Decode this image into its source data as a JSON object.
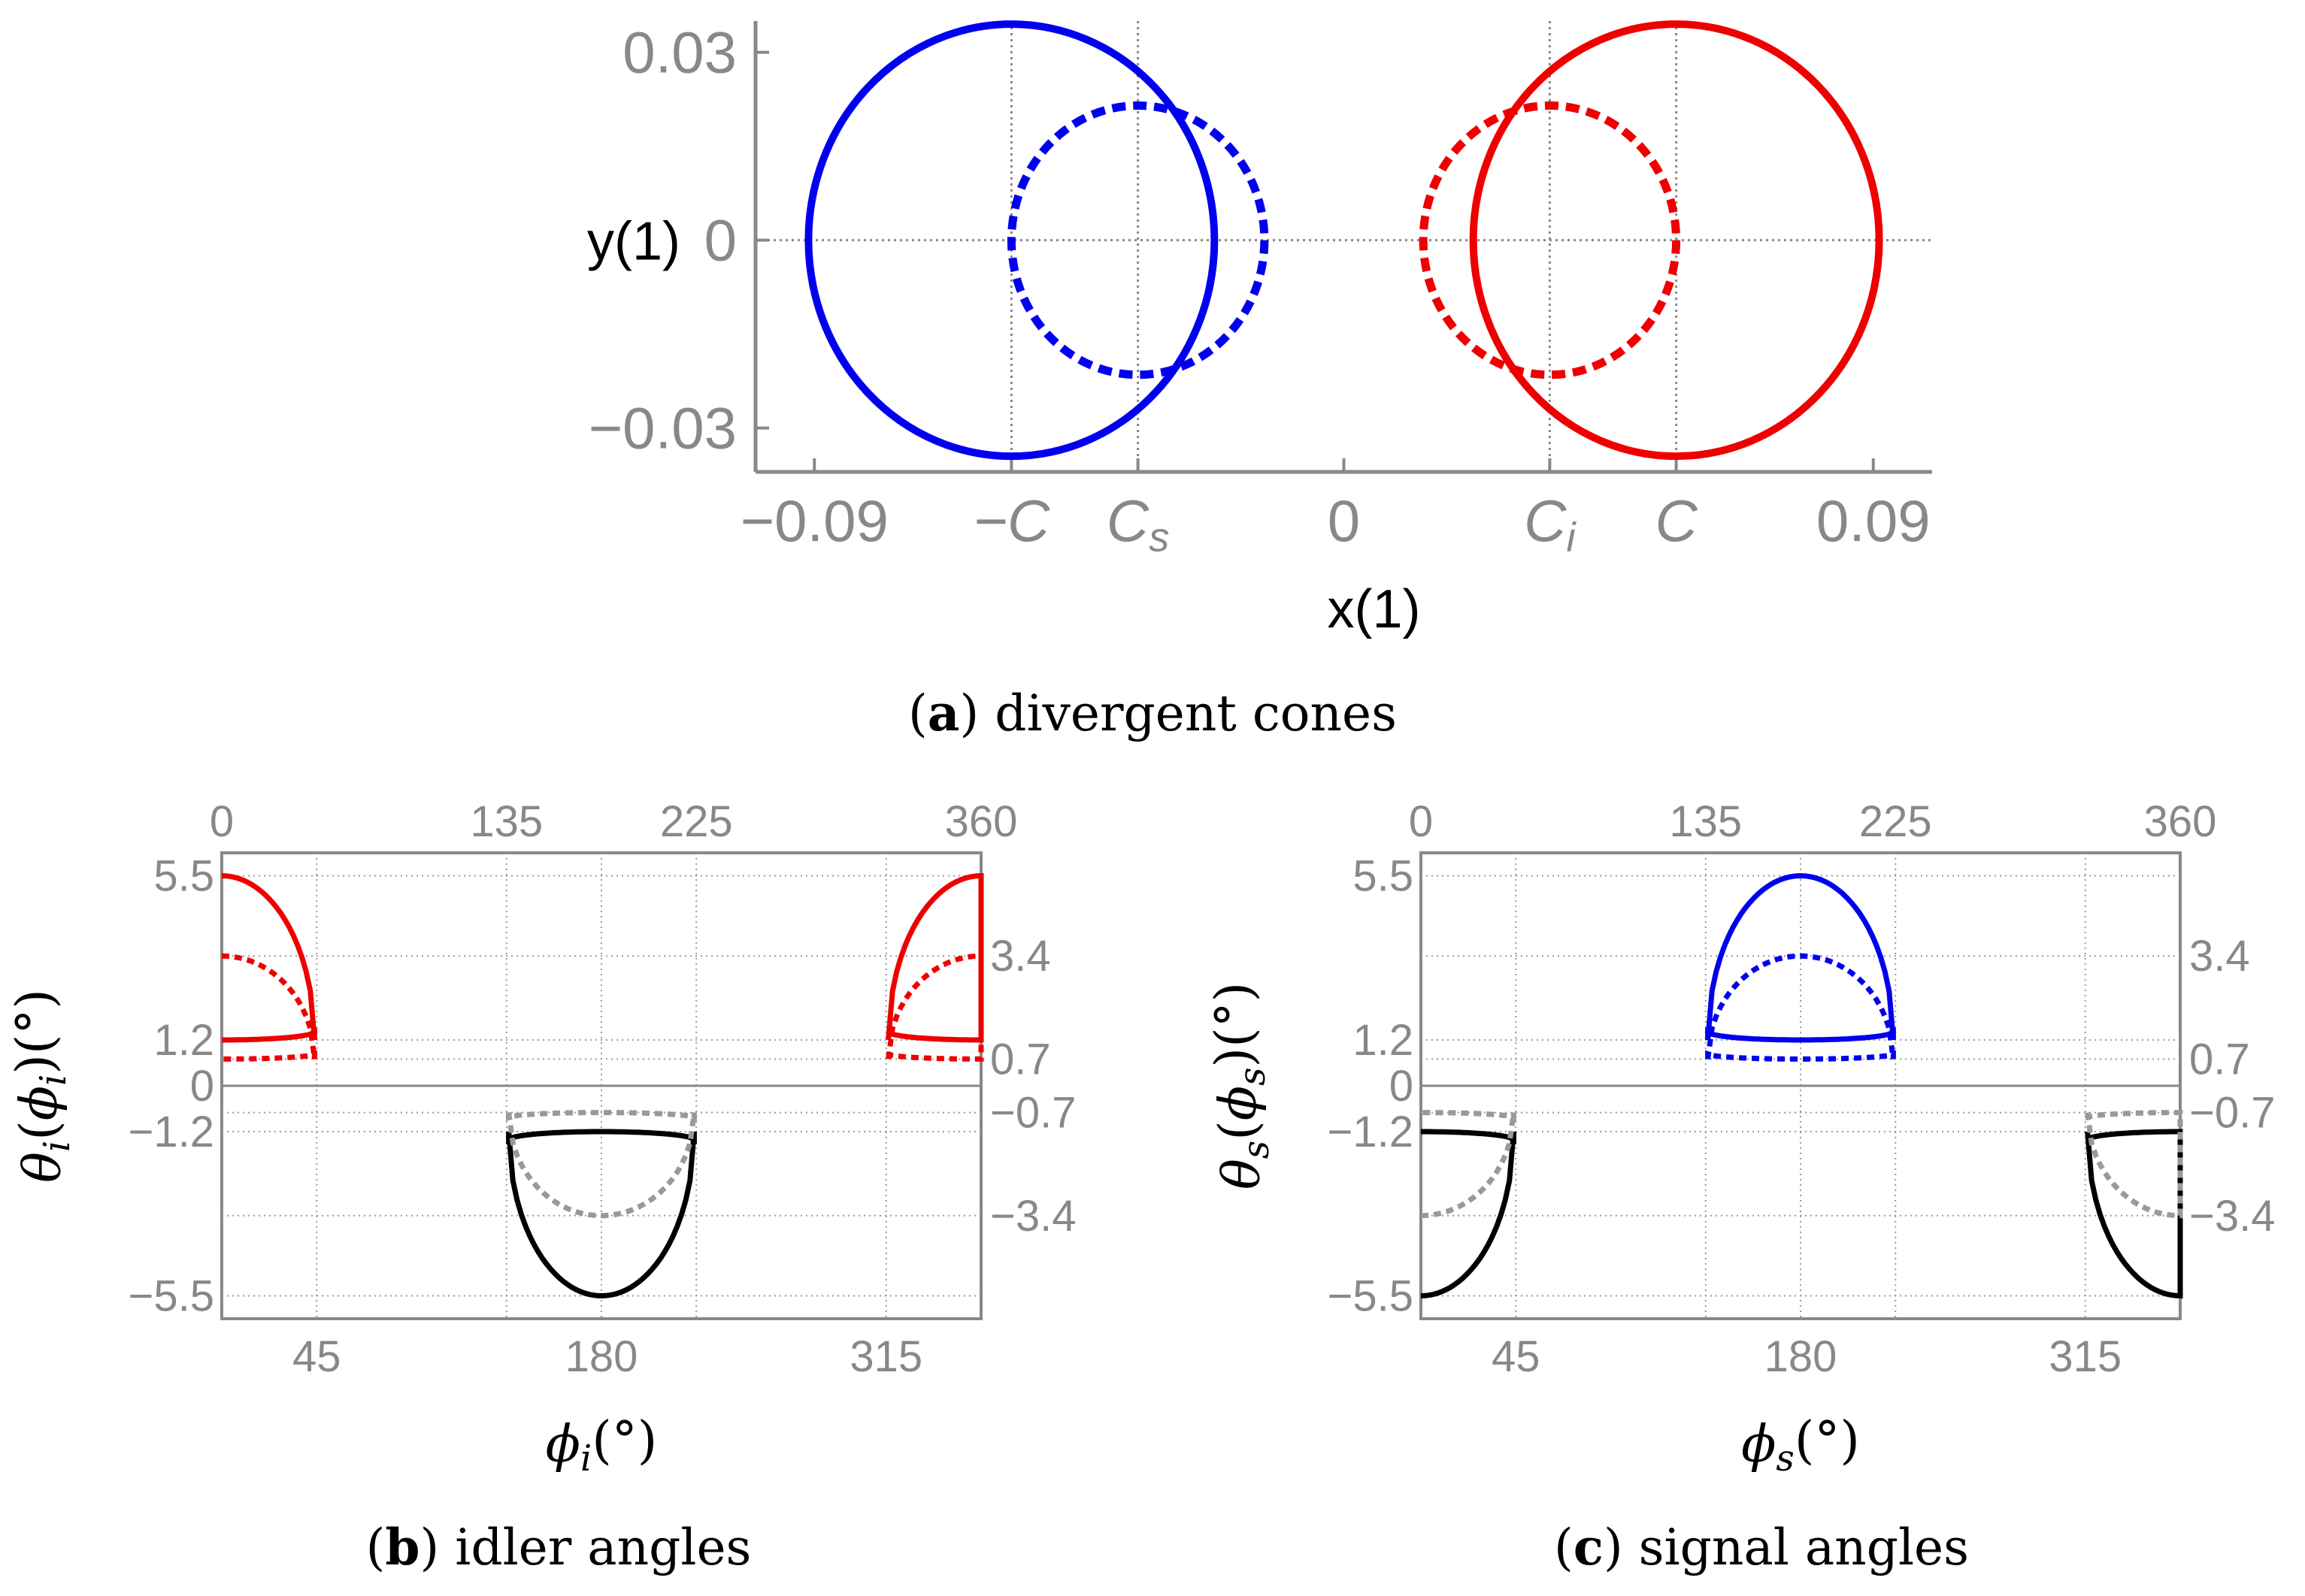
{
  "chart_data": [
    {
      "id": "a",
      "type": "line",
      "caption_letter": "a",
      "caption_text": "divergent cones",
      "xlabel": "x(1)",
      "ylabel": "y(1)",
      "xlim": [
        -0.1,
        0.1
      ],
      "ylim": [
        -0.037,
        0.035
      ],
      "C": 0.0565,
      "Cs": -0.035,
      "Ci": 0.035,
      "x_ticks": [
        {
          "value": -0.09,
          "label": "−0.09"
        },
        {
          "value": -0.0565,
          "label": "−C"
        },
        {
          "value": -0.035,
          "label": "C",
          "sub": "s"
        },
        {
          "value": 0,
          "label": "0"
        },
        {
          "value": 0.035,
          "label": "C",
          "sub": "i"
        },
        {
          "value": 0.0565,
          "label": "C"
        },
        {
          "value": 0.09,
          "label": "0.09"
        }
      ],
      "y_ticks": [
        {
          "value": 0.03,
          "label": "0.03"
        },
        {
          "value": 0,
          "label": "0"
        },
        {
          "value": -0.03,
          "label": "−0.03"
        }
      ],
      "vertical_guides": [
        -0.0565,
        -0.035,
        0.035,
        0.0565
      ],
      "series": [
        {
          "cx": -0.0565,
          "cy": 0,
          "r": 0.0345,
          "color": "#0000ee",
          "style": "solid"
        },
        {
          "cx": -0.035,
          "cy": 0,
          "r": 0.0215,
          "color": "#0000ee",
          "style": "dashed"
        },
        {
          "cx": 0.0565,
          "cy": 0,
          "r": 0.0345,
          "color": "#ee0000",
          "style": "solid"
        },
        {
          "cx": 0.035,
          "cy": 0,
          "r": 0.0215,
          "color": "#ee0000",
          "style": "dashed"
        }
      ]
    },
    {
      "id": "b",
      "type": "line",
      "caption_letter": "b",
      "caption_text": "idler angles",
      "xlabel": "ϕ",
      "xlabel_sub": "i",
      "xlabel_unit": "(°)",
      "ylabel": "θ",
      "ylabel_sub": "i",
      "ylabel_arg": "ϕ",
      "ylabel_unit": "(°)",
      "xlim": [
        0,
        360
      ],
      "ylim": [
        -6.1,
        6.1
      ],
      "bottom_x_ticks": [
        "45",
        "180",
        "315"
      ],
      "bottom_x_values": [
        45,
        180,
        315
      ],
      "top_x_ticks": [
        "0",
        "135",
        "225",
        "360"
      ],
      "top_x_values": [
        0,
        135,
        225,
        360
      ],
      "left_y_ticks": [
        "5.5",
        "1.2",
        "0",
        "−1.2",
        "−5.5"
      ],
      "left_y_values": [
        5.5,
        1.2,
        0,
        -1.2,
        -5.5
      ],
      "right_y_ticks": [
        "3.4",
        "0.7",
        "−0.7",
        "−3.4"
      ],
      "right_y_values": [
        3.4,
        0.7,
        -0.7,
        -3.4
      ],
      "curves": [
        {
          "color": "#ee0000",
          "style": "solid",
          "phase": 0,
          "sign": 1,
          "rmin": 1.2,
          "rmax": 5.5
        },
        {
          "color": "#ee0000",
          "style": "dashed",
          "phase": 0,
          "sign": 1,
          "rmin": 0.7,
          "rmax": 3.4
        },
        {
          "color": "#000000",
          "style": "solid",
          "phase": 180,
          "sign": -1,
          "rmin": 1.2,
          "rmax": 5.5
        },
        {
          "color": "#999999",
          "style": "dashed",
          "phase": 180,
          "sign": -1,
          "rmin": 0.7,
          "rmax": 3.4
        }
      ]
    },
    {
      "id": "c",
      "type": "line",
      "caption_letter": "c",
      "caption_text": "signal angles",
      "xlabel": "ϕ",
      "xlabel_sub": "s",
      "xlabel_unit": "(°)",
      "ylabel": "θ",
      "ylabel_sub": "s",
      "ylabel_arg": "ϕ",
      "ylabel_unit": "(°)",
      "xlim": [
        0,
        360
      ],
      "ylim": [
        -6.1,
        6.1
      ],
      "bottom_x_ticks": [
        "45",
        "180",
        "315"
      ],
      "bottom_x_values": [
        45,
        180,
        315
      ],
      "top_x_ticks": [
        "0",
        "135",
        "225",
        "360"
      ],
      "top_x_values": [
        0,
        135,
        225,
        360
      ],
      "left_y_ticks": [
        "5.5",
        "1.2",
        "0",
        "−1.2",
        "−5.5"
      ],
      "left_y_values": [
        5.5,
        1.2,
        0,
        -1.2,
        -5.5
      ],
      "right_y_ticks": [
        "3.4",
        "0.7",
        "−0.7",
        "−3.4"
      ],
      "right_y_values": [
        3.4,
        0.7,
        -0.7,
        -3.4
      ],
      "curves": [
        {
          "color": "#0000ee",
          "style": "solid",
          "phase": 180,
          "sign": 1,
          "rmin": 1.2,
          "rmax": 5.5
        },
        {
          "color": "#0000ee",
          "style": "dashed",
          "phase": 180,
          "sign": 1,
          "rmin": 0.7,
          "rmax": 3.4
        },
        {
          "color": "#000000",
          "style": "solid",
          "phase": 0,
          "sign": -1,
          "rmin": 1.2,
          "rmax": 5.5
        },
        {
          "color": "#999999",
          "style": "dashed",
          "phase": 0,
          "sign": -1,
          "rmin": 0.7,
          "rmax": 3.4
        }
      ]
    }
  ]
}
